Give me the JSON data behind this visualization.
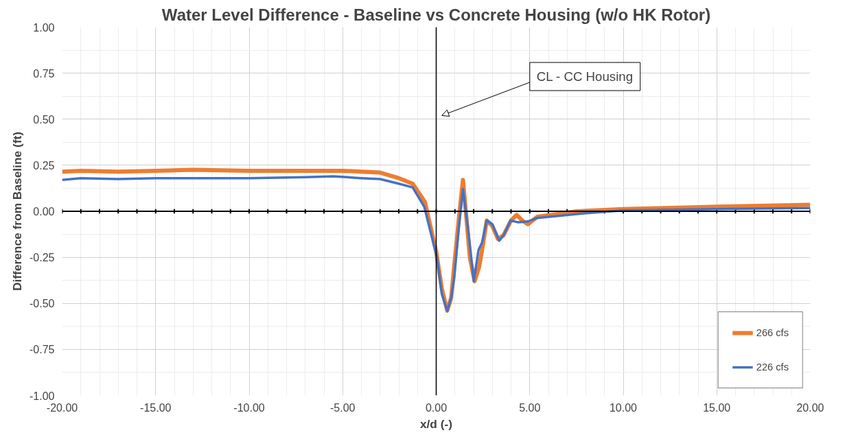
{
  "chart_data": {
    "type": "line",
    "title": "Water Level Difference - Baseline vs Concrete Housing (w/o HK Rotor)",
    "xlabel": "x/d (-)",
    "ylabel": "Difference from Baseline (ft)",
    "xlim": [
      -20,
      20
    ],
    "xticks": [
      {
        "value": -20,
        "label": "-20.00"
      },
      {
        "value": -15,
        "label": "-15.00"
      },
      {
        "value": -10,
        "label": "-10.00"
      },
      {
        "value": -5,
        "label": "-5.00"
      },
      {
        "value": 0,
        "label": "0.00"
      },
      {
        "value": 5,
        "label": "5.00"
      },
      {
        "value": 10,
        "label": "10.00"
      },
      {
        "value": 15,
        "label": "15.00"
      },
      {
        "value": 20,
        "label": "20.00"
      }
    ],
    "ylim": [
      -1,
      1
    ],
    "yticks": [
      {
        "value": -1,
        "label": "-1.00"
      },
      {
        "value": -0.75,
        "label": "-0.75"
      },
      {
        "value": -0.5,
        "label": "-0.50"
      },
      {
        "value": -0.25,
        "label": "-0.25"
      },
      {
        "value": 0,
        "label": "0.00"
      },
      {
        "value": 0.25,
        "label": "0.25"
      },
      {
        "value": 0.5,
        "label": "0.50"
      },
      {
        "value": 0.75,
        "label": "0.75"
      },
      {
        "value": 1,
        "label": "1.00"
      }
    ],
    "grid": true,
    "legend": "bottom right",
    "line_style": "solid",
    "marker": "none",
    "ref_lines": [
      {
        "axis": "x",
        "value": 0,
        "label": "CL - CC Housing",
        "color": "#000000"
      }
    ],
    "series": [
      {
        "name": "266 cfs",
        "color": "#ed7d31",
        "x": [
          -20,
          -19,
          -17,
          -15,
          -13,
          -10,
          -7,
          -5,
          -4,
          -3,
          -2,
          -1.26,
          -0.6,
          0,
          0.3,
          0.59,
          0.8,
          0.96,
          1.2,
          1.43,
          1.6,
          1.8,
          2.05,
          2.3,
          2.5,
          2.7,
          3.0,
          3.3,
          3.6,
          4.0,
          4.3,
          4.6,
          4.9,
          5.4,
          6.5,
          7.5,
          10,
          15,
          20
        ],
        "values": [
          0.215,
          0.22,
          0.215,
          0.22,
          0.225,
          0.22,
          0.22,
          0.22,
          0.215,
          0.21,
          0.18,
          0.15,
          0.05,
          -0.22,
          -0.42,
          -0.54,
          -0.47,
          -0.3,
          -0.05,
          0.17,
          -0.02,
          -0.25,
          -0.38,
          -0.3,
          -0.18,
          -0.05,
          -0.08,
          -0.15,
          -0.13,
          -0.05,
          -0.02,
          -0.05,
          -0.07,
          -0.03,
          -0.015,
          0,
          0.012,
          0.025,
          0.035
        ]
      },
      {
        "name": "226 cfs",
        "color": "#4472c4",
        "x": [
          -20,
          -19,
          -17,
          -15,
          -13,
          -10,
          -7,
          -5.5,
          -4,
          -3,
          -2,
          -1.26,
          -0.64,
          0.04,
          0.3,
          0.59,
          0.8,
          0.96,
          1.2,
          1.43,
          1.7,
          2.01,
          2.26,
          2.45,
          2.7,
          3.0,
          3.37,
          3.6,
          3.98,
          4.4,
          4.9,
          5.4,
          8,
          10,
          15,
          20
        ],
        "values": [
          0.17,
          0.18,
          0.175,
          0.18,
          0.18,
          0.18,
          0.185,
          0.19,
          0.18,
          0.175,
          0.15,
          0.13,
          0.025,
          -0.25,
          -0.45,
          -0.54,
          -0.47,
          -0.365,
          -0.1,
          0.12,
          -0.09,
          -0.38,
          -0.21,
          -0.17,
          -0.05,
          -0.07,
          -0.16,
          -0.13,
          -0.05,
          -0.06,
          -0.055,
          -0.036,
          -0.01,
          0.005,
          0.012,
          0.018
        ]
      }
    ]
  }
}
